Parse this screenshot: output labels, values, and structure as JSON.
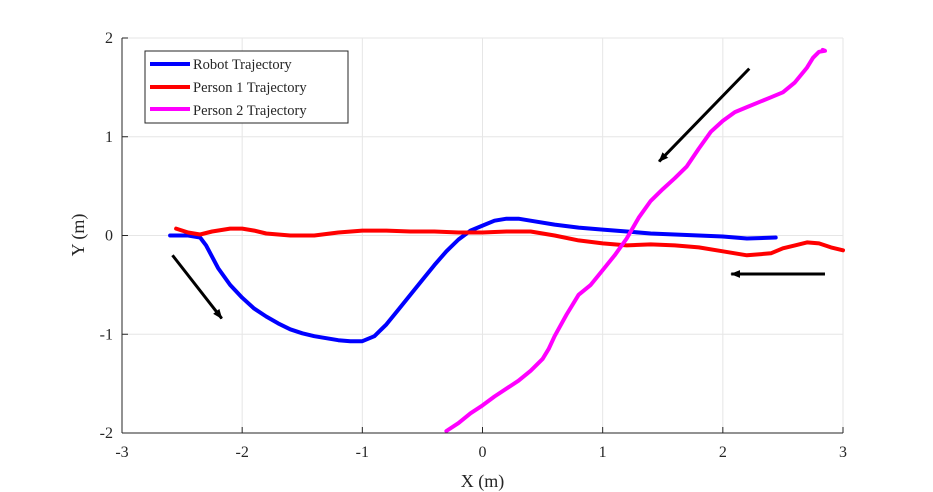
{
  "chart_data": {
    "type": "line",
    "title": "",
    "xlabel": "X (m)",
    "ylabel": "Y (m)",
    "xlim": [
      -3,
      3
    ],
    "ylim": [
      -2,
      2
    ],
    "xticks": [
      -3,
      -2,
      -1,
      0,
      1,
      2,
      3
    ],
    "yticks": [
      -2,
      -1,
      0,
      1,
      2
    ],
    "xtick_labels": [
      "-3",
      "-2",
      "-1",
      "0",
      "1",
      "2",
      "3"
    ],
    "ytick_labels": [
      "-2",
      "-1",
      "0",
      "1",
      "2"
    ],
    "grid": true,
    "legend_position": "top-left",
    "series": [
      {
        "name": "Robot Trajectory",
        "color": "#0000ff",
        "x": [
          -2.6,
          -2.45,
          -2.35,
          -2.3,
          -2.2,
          -2.1,
          -2.0,
          -1.9,
          -1.8,
          -1.7,
          -1.6,
          -1.5,
          -1.4,
          -1.3,
          -1.2,
          -1.1,
          -1.0,
          -0.9,
          -0.8,
          -0.7,
          -0.6,
          -0.5,
          -0.4,
          -0.3,
          -0.2,
          -0.1,
          0.0,
          0.1,
          0.2,
          0.3,
          0.4,
          0.6,
          0.8,
          1.0,
          1.2,
          1.4,
          1.6,
          1.8,
          2.0,
          2.2,
          2.44
        ],
        "y": [
          0.0,
          0.0,
          -0.02,
          -0.1,
          -0.33,
          -0.5,
          -0.63,
          -0.74,
          -0.82,
          -0.89,
          -0.95,
          -0.99,
          -1.02,
          -1.04,
          -1.06,
          -1.07,
          -1.07,
          -1.02,
          -0.9,
          -0.75,
          -0.6,
          -0.45,
          -0.3,
          -0.16,
          -0.04,
          0.05,
          0.1,
          0.15,
          0.17,
          0.17,
          0.15,
          0.11,
          0.08,
          0.06,
          0.04,
          0.02,
          0.01,
          0.0,
          -0.01,
          -0.03,
          -0.02
        ]
      },
      {
        "name": "Person 1 Trajectory",
        "color": "#ff0000",
        "x": [
          -2.55,
          -2.45,
          -2.35,
          -2.25,
          -2.1,
          -2.0,
          -1.9,
          -1.8,
          -1.6,
          -1.4,
          -1.2,
          -1.0,
          -0.8,
          -0.6,
          -0.4,
          -0.2,
          0.0,
          0.2,
          0.4,
          0.6,
          0.8,
          1.0,
          1.2,
          1.4,
          1.6,
          1.8,
          2.0,
          2.2,
          2.4,
          2.5,
          2.6,
          2.7,
          2.8,
          2.9,
          3.0
        ],
        "y": [
          0.07,
          0.03,
          0.01,
          0.04,
          0.07,
          0.07,
          0.05,
          0.02,
          0.0,
          0.0,
          0.03,
          0.05,
          0.05,
          0.04,
          0.04,
          0.03,
          0.03,
          0.04,
          0.04,
          0.0,
          -0.05,
          -0.08,
          -0.1,
          -0.09,
          -0.1,
          -0.12,
          -0.16,
          -0.2,
          -0.18,
          -0.13,
          -0.1,
          -0.07,
          -0.08,
          -0.12,
          -0.15
        ]
      },
      {
        "name": "Person 2 Trajectory",
        "color": "#ff00ff",
        "x": [
          -0.3,
          -0.2,
          -0.1,
          0.0,
          0.1,
          0.2,
          0.3,
          0.4,
          0.5,
          0.55,
          0.6,
          0.7,
          0.8,
          0.9,
          1.0,
          1.1,
          1.2,
          1.3,
          1.4,
          1.5,
          1.6,
          1.7,
          1.8,
          1.9,
          2.0,
          2.1,
          2.2,
          2.3,
          2.4,
          2.5,
          2.6,
          2.7,
          2.75,
          2.8,
          2.85,
          2.83
        ],
        "y": [
          -1.98,
          -1.9,
          -1.8,
          -1.72,
          -1.63,
          -1.55,
          -1.47,
          -1.37,
          -1.25,
          -1.15,
          -1.02,
          -0.8,
          -0.6,
          -0.5,
          -0.35,
          -0.2,
          -0.03,
          0.18,
          0.35,
          0.47,
          0.58,
          0.7,
          0.88,
          1.05,
          1.16,
          1.25,
          1.3,
          1.35,
          1.4,
          1.45,
          1.55,
          1.7,
          1.8,
          1.86,
          1.87,
          1.88
        ]
      }
    ],
    "annotations": [
      {
        "type": "arrow",
        "from": [
          -2.58,
          -0.2
        ],
        "to": [
          -2.17,
          -0.84
        ]
      },
      {
        "type": "arrow",
        "from": [
          2.22,
          1.69
        ],
        "to": [
          1.47,
          0.75
        ]
      },
      {
        "type": "arrow",
        "from": [
          2.85,
          -0.39
        ],
        "to": [
          2.07,
          -0.39
        ]
      }
    ]
  }
}
